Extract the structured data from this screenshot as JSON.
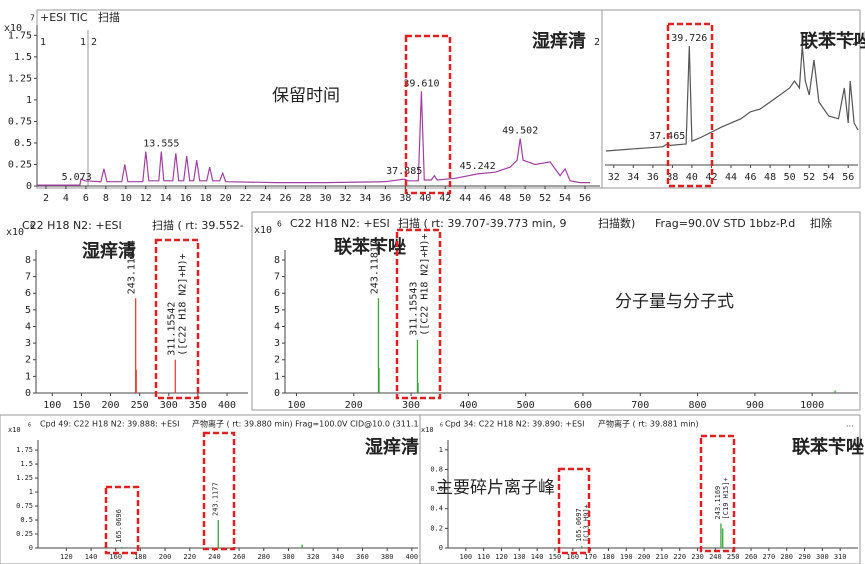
{
  "chart_data": [
    {
      "type": "line",
      "header": [
        "+ESI TIC",
        "扫描"
      ],
      "y_multiplier": "x10",
      "y_exponent": 7,
      "markers": [
        "1",
        "1",
        "2",
        "2"
      ],
      "callout": "湿痒清",
      "note": "保留时间",
      "xlim": [
        1.1,
        57.5
      ],
      "ylim": [
        0,
        1.87
      ],
      "xticks": [
        2,
        4,
        6,
        8,
        10,
        12,
        14,
        16,
        18,
        20,
        22,
        24,
        26,
        28,
        30,
        32,
        34,
        36,
        38,
        40,
        42,
        44,
        46,
        48,
        50,
        52,
        54,
        56
      ],
      "yticks": [
        0,
        0.25,
        0.5,
        0.75,
        1,
        1.25,
        1.5,
        1.75
      ],
      "series": [
        {
          "color": "#a0409f",
          "x": [
            1.1,
            5.4,
            5.5,
            5.9,
            7.5,
            7.8,
            8.1,
            9.6,
            9.9,
            10.2,
            11.7,
            12.0,
            12.3,
            13.3,
            13.555,
            13.8,
            14.7,
            15.0,
            15.3,
            15.8,
            16.1,
            16.4,
            16.8,
            17.1,
            17.4,
            18.1,
            18.4,
            18.7,
            19.4,
            19.7,
            20.0,
            25,
            30,
            36,
            37.885,
            38.3,
            39.3,
            39.61,
            39.9,
            40.6,
            40.9,
            41.2,
            43,
            45.242,
            47,
            48.5,
            49.2,
            49.502,
            49.8,
            51,
            52.5,
            53.5,
            54.0,
            54.5,
            55.5,
            56.5
          ],
          "values": [
            0.01,
            0.01,
            0.08,
            0.06,
            0.05,
            0.2,
            0.05,
            0.05,
            0.25,
            0.05,
            0.05,
            0.4,
            0.06,
            0.06,
            0.4,
            0.06,
            0.06,
            0.38,
            0.06,
            0.06,
            0.35,
            0.06,
            0.06,
            0.3,
            0.06,
            0.06,
            0.22,
            0.06,
            0.06,
            0.15,
            0.05,
            0.04,
            0.04,
            0.05,
            0.08,
            0.06,
            0.06,
            1.1,
            0.07,
            0.07,
            0.12,
            0.07,
            0.09,
            0.14,
            0.16,
            0.22,
            0.3,
            0.55,
            0.3,
            0.25,
            0.28,
            0.12,
            0.2,
            0.06,
            0.04,
            0.04
          ]
        }
      ],
      "peaks": [
        5.073,
        13.555,
        37.885,
        {
          "value": 39.61,
          "label": "39.610"
        },
        45.242,
        49.502
      ]
    },
    {
      "type": "line",
      "markers": [
        "2"
      ],
      "callout": "联苯苄唑",
      "xlim": [
        31.1,
        57
      ],
      "ylim": [
        0,
        1
      ],
      "xticks": [
        32,
        34,
        36,
        38,
        40,
        42,
        44,
        46,
        48,
        50,
        52,
        54,
        56
      ],
      "series": [
        {
          "color": "#555555",
          "x": [
            31.2,
            33,
            35,
            37,
            37.465,
            37.8,
            39.4,
            39.726,
            40.0,
            41,
            43,
            45,
            46,
            47,
            48,
            49,
            50,
            50.5,
            51.0,
            51.3,
            51.6,
            52.0,
            52.5,
            53,
            54,
            55,
            55.6,
            56,
            56.2,
            56.6,
            57
          ],
          "values": [
            0.1,
            0.11,
            0.12,
            0.13,
            0.15,
            0.14,
            0.15,
            0.85,
            0.17,
            0.2,
            0.27,
            0.33,
            0.38,
            0.4,
            0.45,
            0.5,
            0.55,
            0.6,
            0.55,
            0.85,
            0.6,
            0.5,
            0.75,
            0.45,
            0.35,
            0.33,
            0.55,
            0.3,
            0.6,
            0.3,
            0.25
          ]
        }
      ],
      "peaks": [
        37.465,
        39.726
      ]
    },
    {
      "type": "stick",
      "header": [
        "C22 H18 N2: +ESI",
        "扫描 ( rt: 39.552-"
      ],
      "y_multiplier": "x10",
      "y_exponent": 6,
      "callout": "湿痒清",
      "color": "#e8433b",
      "xlim": [
        72,
        436
      ],
      "ylim": [
        0,
        8.6
      ],
      "xticks": [
        100,
        150,
        200,
        250,
        300,
        350,
        400
      ],
      "yticks": [
        0,
        1,
        2,
        3,
        4,
        5,
        6,
        7,
        8
      ],
      "peaks": {
        "x": [
          243.11814,
          311.15542
        ],
        "values": [
          5.7,
          2.0
        ],
        "formulas": [
          null,
          "([C22 H18 N2]+H)+"
        ]
      },
      "minor": {
        "x": [
          244.1215
        ],
        "values": [
          1.4
        ]
      }
    },
    {
      "type": "stick",
      "header": [
        "C22 H18 N2: +ESI",
        "扫描 ( rt: 39.707-39.773 min, 9",
        "扫描数)",
        "Frag=90.0V STD 1bbz-P.d",
        "扣除"
      ],
      "y_multiplier": "x10",
      "y_exponent": 6,
      "callout": "联苯苄唑",
      "note": "分子量与分子式",
      "color": "#3aa33a",
      "xlim": [
        80,
        1080
      ],
      "ylim": [
        0,
        8.6
      ],
      "xticks": [
        100,
        200,
        300,
        400,
        500,
        600,
        700,
        800,
        900,
        1000
      ],
      "yticks": [
        0,
        1,
        2,
        3,
        4,
        5,
        6,
        7,
        8
      ],
      "peaks": {
        "x": [
          243.11817,
          311.15543
        ],
        "values": [
          5.7,
          3.2
        ],
        "formulas": [
          null,
          "([C22 H18 N2]+H)+"
        ]
      },
      "minor": {
        "x": [
          244.12,
          312.16,
          1040
        ],
        "values": [
          1.5,
          0.6,
          0.15
        ]
      }
    },
    {
      "type": "stick",
      "header": [
        "Cpd 49: C22 H18 N2: 39.888: +ESI",
        "产物离子 ( rt: 39.880 min) Frag=100.0V CID@10.0 (311.1"
      ],
      "y_multiplier": "x10",
      "y_exponent": 6,
      "callout": "湿痒清",
      "note": "主要碎片离子峰",
      "color": "#3aa33a",
      "xlim": [
        97,
        405
      ],
      "ylim": [
        0,
        1.93
      ],
      "xticks": [
        120,
        140,
        160,
        180,
        200,
        220,
        240,
        260,
        280,
        300,
        320,
        340,
        360,
        380,
        400
      ],
      "yticks": [
        0,
        0.25,
        0.5,
        0.75,
        1,
        1.25,
        1.5,
        1.75
      ],
      "peaks": {
        "x": [
          165.0696,
          243.1177
        ],
        "values": [
          0.02,
          0.5
        ],
        "formulas": [
          null,
          null
        ]
      },
      "minor": {
        "x": [
          311.1
        ],
        "values": [
          0.06
        ]
      }
    },
    {
      "type": "stick",
      "header": [
        "Cpd 34: C22 H18 N2: 39.890: +ESI",
        "产物离子 ( rt: 39.881 min)",
        "..."
      ],
      "y_multiplier": "x10",
      "y_exponent": 6,
      "callout": "联苯苄唑",
      "color": "#3aa33a",
      "xlim": [
        90,
        320
      ],
      "ylim": [
        0,
        1.1
      ],
      "xticks": [
        100,
        110,
        120,
        130,
        140,
        150,
        160,
        170,
        180,
        190,
        200,
        210,
        220,
        230,
        240,
        250,
        260,
        270,
        280,
        290,
        300,
        310
      ],
      "yticks": [
        0,
        0.2,
        0.4,
        0.6,
        0.8,
        1
      ],
      "peaks": {
        "x": [
          165.0697,
          243.1169
        ],
        "values": [
          0.02,
          0.25
        ],
        "formulas": [
          "[C13 H9]+",
          "[C19 H15]+"
        ]
      },
      "minor": {
        "x": [
          244.12
        ],
        "values": [
          0.2
        ]
      }
    }
  ]
}
